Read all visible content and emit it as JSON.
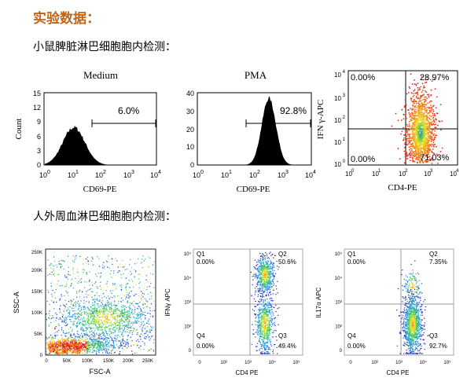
{
  "heading": "实验数据：",
  "section1": "小鼠脾脏淋巴细胞胞内检测：",
  "section2": "人外周血淋巴细胞胞内检测：",
  "hist1": {
    "title": "Medium",
    "ylabel": "Count",
    "xlabel": "CD69-PE",
    "pct": "6.0%",
    "yticks": [
      "0",
      "3",
      "6",
      "9",
      "12",
      "15"
    ],
    "xticks": [
      "10",
      "10",
      "10",
      "10",
      "10"
    ],
    "xexp": [
      "0",
      "1",
      "2",
      "3",
      "4"
    ]
  },
  "hist2": {
    "title": "PMA",
    "xlabel": "CD69-PE",
    "pct": "92.8%",
    "yticks": [
      "0",
      "10",
      "20",
      "30",
      "40"
    ],
    "xticks": [
      "10",
      "10",
      "10",
      "10",
      "10"
    ],
    "xexp": [
      "0",
      "1",
      "2",
      "3",
      "4"
    ]
  },
  "mouse_dot": {
    "ylabel": "IFN γ-APC",
    "xlabel": "CD4-PE",
    "ul": "0.00%",
    "ur": "28.97%",
    "ll": "0.00%",
    "lr": "71.03%",
    "ticks": [
      "10",
      "10",
      "10",
      "10",
      "10"
    ],
    "exp": [
      "0",
      "1",
      "2",
      "3",
      "4"
    ]
  },
  "human_scatter": {
    "ylabel": "SSC-A",
    "xlabel": "FSC-A",
    "yticks": [
      "0",
      "50K",
      "100K",
      "150K",
      "200K",
      "250K"
    ],
    "xticks": [
      "0",
      "50K",
      "100K",
      "150K",
      "200K",
      "250K"
    ]
  },
  "human_ifn": {
    "ylabel": "IFNγ APC",
    "xlabel": "CD4 PE",
    "q1": "Q1",
    "q1v": "0.00%",
    "q2": "Q2",
    "q2v": "50.6%",
    "q3": "Q3",
    "q3v": "49.4%",
    "q4": "Q4",
    "q4v": "0.00%"
  },
  "human_il17": {
    "ylabel": "IL17α APC",
    "xlabel": "CD4 PE",
    "q1": "Q1",
    "q1v": "0.00%",
    "q2": "Q2",
    "q2v": "7.35%",
    "q3": "Q3",
    "q3v": "92.7%",
    "q4": "Q4",
    "q4v": "0.00%"
  },
  "colors": {
    "heading": "#c0641a"
  }
}
